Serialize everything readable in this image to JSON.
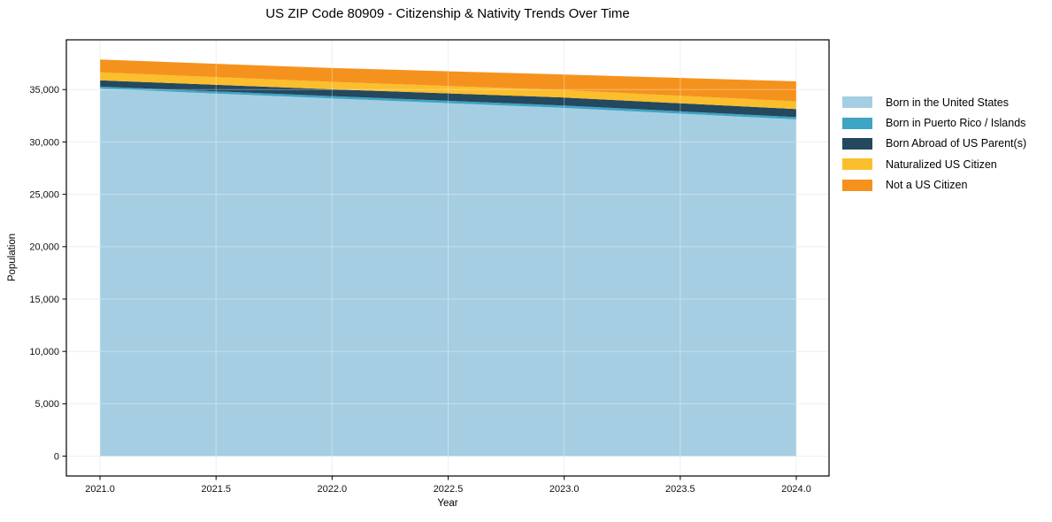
{
  "chart_data": {
    "type": "area",
    "stacked": true,
    "title": "US ZIP Code 80909 - Citizenship & Nativity Trends Over Time",
    "xlabel": "Year",
    "ylabel": "Population",
    "x": [
      2021,
      2022,
      2023,
      2024
    ],
    "series": [
      {
        "name": "Born in the United States",
        "color": "#A6CEE3",
        "values": [
          35090,
          34150,
          33250,
          32150
        ]
      },
      {
        "name": "Born in Puerto Rico / Islands",
        "color": "#3EA5C4",
        "values": [
          195,
          230,
          225,
          220
        ]
      },
      {
        "name": "Born Abroad of US Parent(s)",
        "color": "#24485E",
        "values": [
          595,
          645,
          765,
          765
        ]
      },
      {
        "name": "Naturalized US Citizen",
        "color": "#FBBE2C",
        "values": [
          760,
          710,
          705,
          740
        ]
      },
      {
        "name": "Not a US Citizen",
        "color": "#F5921E",
        "values": [
          1225,
          1325,
          1495,
          1915
        ]
      }
    ],
    "stack_totals": [
      37865,
      37060,
      36440,
      35790
    ],
    "xlim": [
      2020.855,
      2024.141
    ],
    "ylim": [
      -1893,
      39751
    ],
    "xticks": [
      2021.0,
      2021.5,
      2022.0,
      2022.5,
      2023.0,
      2023.5,
      2024.0
    ],
    "xticklabels": [
      "2021.0",
      "2021.5",
      "2022.0",
      "2022.5",
      "2023.0",
      "2023.5",
      "2024.0"
    ],
    "yticks": [
      0,
      5000,
      10000,
      15000,
      20000,
      25000,
      30000,
      35000
    ],
    "yticklabels": [
      "0",
      "5,000",
      "10,000",
      "15,000",
      "20,000",
      "25,000",
      "30,000",
      "35,000"
    ],
    "grid": true,
    "grid_color": "#E8E8E8",
    "grid_overlay_color": "rgba(255,255,255,0.35)",
    "spine_color": "#000000",
    "background_color": "#FFFFFF",
    "legend_position": "right"
  }
}
